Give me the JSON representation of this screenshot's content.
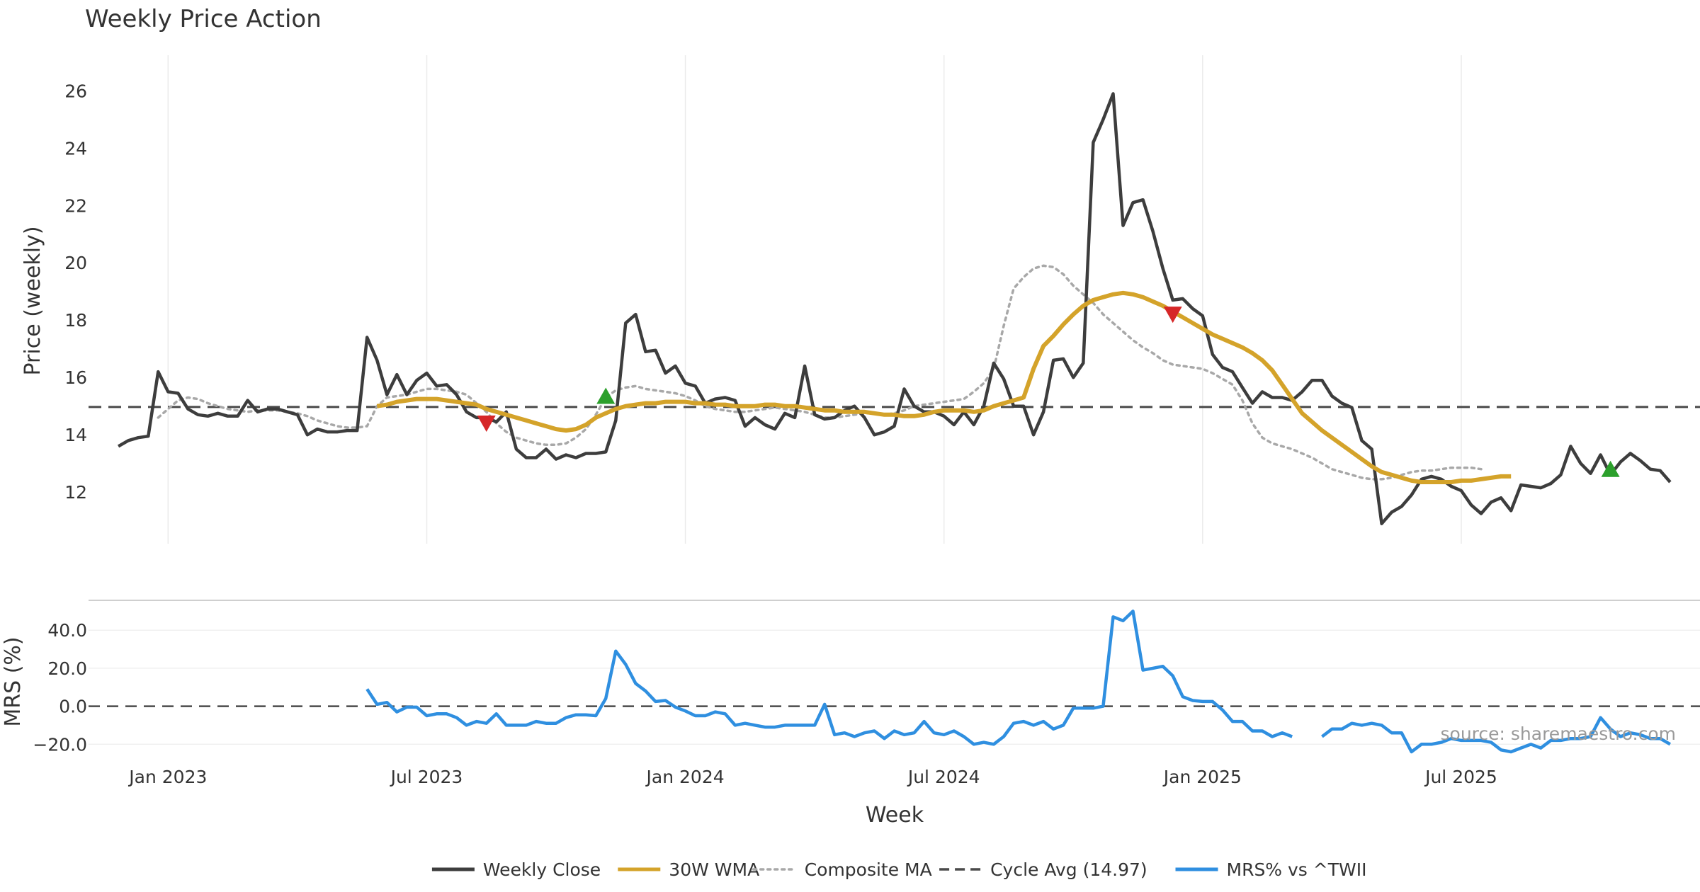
{
  "chart_data": {
    "type": "line",
    "title": "Weekly Price Action",
    "xlabel": "Week",
    "source_note": "source: sharemaestro.com",
    "x_ticks": [
      "Jan 2023",
      "Jul 2023",
      "Jan 2024",
      "Jul 2024",
      "Jan 2025",
      "Jul 2025"
    ],
    "x_tick_weeks": [
      5,
      31,
      57,
      83,
      109,
      135
    ],
    "week_range": [
      -3,
      159
    ],
    "price_panel": {
      "ylabel": "Price (weekly)",
      "ylim": [
        10.2,
        26.7
      ],
      "yticks": [
        12,
        14,
        16,
        18,
        20,
        22,
        24,
        26
      ],
      "cycle_avg": 14.97,
      "weekly_close": [
        13.6,
        13.8,
        13.9,
        13.95,
        16.2,
        15.5,
        15.45,
        14.9,
        14.7,
        14.65,
        14.75,
        14.65,
        14.65,
        15.2,
        14.8,
        14.9,
        14.9,
        14.8,
        14.7,
        14.0,
        14.2,
        14.1,
        14.1,
        14.15,
        14.15,
        17.4,
        16.6,
        15.4,
        16.1,
        15.4,
        15.9,
        16.15,
        15.7,
        15.75,
        15.4,
        14.8,
        14.6,
        14.6,
        14.45,
        14.8,
        13.5,
        13.2,
        13.2,
        13.5,
        13.15,
        13.3,
        13.2,
        13.35,
        13.35,
        13.4,
        14.5,
        17.9,
        18.2,
        16.9,
        16.95,
        16.15,
        16.4,
        15.8,
        15.7,
        15.1,
        15.25,
        15.3,
        15.2,
        14.3,
        14.6,
        14.35,
        14.2,
        14.75,
        14.6,
        16.4,
        14.7,
        14.55,
        14.6,
        14.85,
        15.0,
        14.6,
        14.0,
        14.1,
        14.3,
        15.6,
        15.0,
        14.8,
        14.8,
        14.65,
        14.35,
        14.8,
        14.35,
        15.0,
        16.5,
        15.95,
        15.0,
        15.0,
        14.0,
        14.8,
        16.6,
        16.65,
        16.0,
        16.5,
        24.2,
        25.0,
        25.9,
        21.3,
        22.1,
        22.2,
        21.1,
        19.8,
        18.7,
        18.75,
        18.4,
        18.15,
        16.8,
        16.35,
        16.2,
        15.65,
        15.1,
        15.5,
        15.3,
        15.3,
        15.2,
        15.5,
        15.9,
        15.9,
        15.35,
        15.1,
        14.95,
        13.8,
        13.5,
        10.9,
        11.3,
        11.5,
        11.9,
        12.45,
        12.55,
        12.45,
        12.2,
        12.05,
        11.55,
        11.25,
        11.65,
        11.8,
        11.35,
        12.25,
        12.2,
        12.15,
        12.3,
        12.6,
        13.6,
        13.0,
        12.65,
        13.3,
        12.6,
        13.05,
        13.35,
        13.1,
        12.8,
        12.75,
        12.35
      ],
      "wma_30w": {
        "start_week": 26,
        "values": [
          15.0,
          15.05,
          15.15,
          15.2,
          15.25,
          15.25,
          15.25,
          15.2,
          15.15,
          15.1,
          15.05,
          14.9,
          14.8,
          14.7,
          14.6,
          14.5,
          14.4,
          14.3,
          14.2,
          14.15,
          14.2,
          14.35,
          14.6,
          14.75,
          14.9,
          15.0,
          15.05,
          15.1,
          15.1,
          15.15,
          15.15,
          15.15,
          15.1,
          15.1,
          15.05,
          15.05,
          15.0,
          15.0,
          15.0,
          15.05,
          15.05,
          15.0,
          15.0,
          14.95,
          14.9,
          14.85,
          14.85,
          14.8,
          14.8,
          14.8,
          14.75,
          14.7,
          14.7,
          14.65,
          14.65,
          14.7,
          14.8,
          14.85,
          14.85,
          14.85,
          14.8,
          14.85,
          15.0,
          15.1,
          15.2,
          15.3,
          16.3,
          17.1,
          17.45,
          17.85,
          18.2,
          18.5,
          18.7,
          18.8,
          18.9,
          18.95,
          18.9,
          18.8,
          18.65,
          18.5,
          18.3,
          18.1,
          17.9,
          17.7,
          17.5,
          17.35,
          17.2,
          17.05,
          16.85,
          16.6,
          16.25,
          15.75,
          15.25,
          14.75,
          14.45,
          14.15,
          13.9,
          13.65,
          13.4,
          13.15,
          12.9,
          12.7,
          12.6,
          12.5,
          12.4,
          12.35,
          12.35,
          12.35,
          12.35,
          12.4,
          12.4,
          12.45,
          12.5,
          12.55,
          12.55
        ]
      },
      "composite_ma": {
        "start_week": 4,
        "values": [
          14.6,
          14.9,
          15.2,
          15.3,
          15.25,
          15.1,
          15.0,
          14.9,
          14.85,
          14.8,
          14.85,
          14.85,
          14.85,
          14.8,
          14.75,
          14.65,
          14.5,
          14.4,
          14.3,
          14.25,
          14.25,
          14.3,
          15.0,
          15.3,
          15.35,
          15.4,
          15.5,
          15.6,
          15.6,
          15.55,
          15.5,
          15.4,
          15.1,
          14.8,
          14.4,
          14.1,
          13.9,
          13.8,
          13.7,
          13.65,
          13.65,
          13.7,
          13.9,
          14.2,
          14.7,
          15.3,
          15.55,
          15.65,
          15.7,
          15.6,
          15.55,
          15.5,
          15.45,
          15.35,
          15.2,
          15.0,
          14.9,
          14.85,
          14.8,
          14.8,
          14.85,
          14.9,
          14.95,
          14.9,
          14.85,
          14.8,
          14.7,
          14.6,
          14.6,
          14.65,
          14.7,
          14.75,
          14.75,
          14.7,
          14.75,
          14.85,
          15.0,
          15.05,
          15.1,
          15.15,
          15.2,
          15.25,
          15.5,
          15.8,
          16.3,
          17.8,
          19.1,
          19.5,
          19.8,
          19.9,
          19.85,
          19.6,
          19.2,
          18.9,
          18.6,
          18.2,
          17.9,
          17.6,
          17.3,
          17.05,
          16.85,
          16.6,
          16.45,
          16.4,
          16.35,
          16.3,
          16.15,
          15.95,
          15.75,
          15.2,
          14.4,
          13.9,
          13.7,
          13.6,
          13.5,
          13.35,
          13.2,
          13.0,
          12.8,
          12.7,
          12.6,
          12.5,
          12.45,
          12.45,
          12.5,
          12.6,
          12.7,
          12.75,
          12.75,
          12.8,
          12.85,
          12.85,
          12.85,
          12.8
        ]
      },
      "signals_up": [
        {
          "week": 49,
          "price": 15.35
        },
        {
          "week": 150,
          "price": 12.8
        }
      ],
      "signals_down": [
        {
          "week": 37,
          "price": 14.4
        },
        {
          "week": 106,
          "price": 18.2
        }
      ]
    },
    "mrs_panel": {
      "ylabel": "MRS (%)",
      "ylim": [
        -24,
        52
      ],
      "yticks": [
        40.0,
        20.0,
        0.0,
        -20.0
      ],
      "ytick_labels": [
        "40.0",
        "20.0",
        "0.0",
        "−20.0"
      ],
      "series_segments": [
        {
          "start_week": 25,
          "values": [
            9,
            1,
            2,
            -3,
            -0.5,
            -0.5,
            -5,
            -4,
            -4,
            -6,
            -10,
            -8,
            -9,
            -4,
            -10,
            -10,
            -10,
            -8,
            -9,
            -9,
            -6,
            -4.5,
            -4.5,
            -5,
            4,
            29,
            22,
            12,
            8,
            2.5,
            3,
            -0.5,
            -2.5,
            -5,
            -5,
            -3,
            -4,
            -10,
            -9,
            -10,
            -11,
            -11,
            -10,
            -10,
            -10,
            -10,
            1,
            -15,
            -14,
            -16,
            -14,
            -13,
            -17,
            -13,
            -15,
            -14,
            -8,
            -14,
            -15,
            -13,
            -16,
            -20,
            -19,
            -20,
            -16,
            -9,
            -8,
            -10,
            -8,
            -12,
            -10,
            -1,
            -1,
            -1,
            0,
            47,
            45,
            50,
            19,
            20,
            21,
            16,
            5,
            3,
            2.5,
            2.5,
            -2,
            -8,
            -8,
            -13,
            -13,
            -16,
            -14,
            -16
          ]
        },
        {
          "start_week": 121,
          "values": [
            -16,
            -12,
            -12,
            -9,
            -10,
            -9,
            -10,
            -14,
            -14,
            -24,
            -20,
            -20,
            -19,
            -17,
            -18,
            -18,
            -18,
            -19,
            -23,
            -24,
            -22,
            -20,
            -22,
            -18,
            -18,
            -17,
            -17,
            -16,
            -6,
            -12,
            -16,
            -14,
            -15,
            -17,
            -17,
            -20
          ]
        }
      ]
    },
    "legend": [
      {
        "label": "Weekly Close",
        "color": "#3d3d3d",
        "style": "solid"
      },
      {
        "label": "30W WMA",
        "color": "#d4a32a",
        "style": "solid"
      },
      {
        "label": "Composite MA",
        "color": "#a8a8a8",
        "style": "dotted"
      },
      {
        "label": "Cycle Avg (14.97)",
        "color": "#4a4a4a",
        "style": "dashed"
      },
      {
        "label": "MRS% vs ^TWII",
        "color": "#2f8fe0",
        "style": "solid"
      }
    ],
    "colors": {
      "close": "#3d3d3d",
      "wma": "#d4a32a",
      "composite": "#a8a8a8",
      "cycle": "#4a4a4a",
      "mrs": "#2f8fe0",
      "up": "#2ca02c",
      "down": "#d62728",
      "grid": "#ebebeb",
      "text": "#333333",
      "source": "#9a9a9a"
    }
  }
}
